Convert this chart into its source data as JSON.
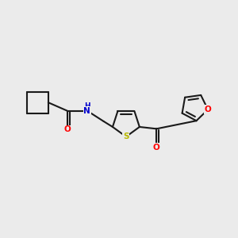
{
  "bg_color": "#ebebeb",
  "bond_color": "#1a1a1a",
  "bond_width": 1.5,
  "atom_colors": {
    "O": "#ff0000",
    "N": "#0000cd",
    "S": "#b8b800",
    "C": "#1a1a1a"
  },
  "font_size_atom": 7.5
}
